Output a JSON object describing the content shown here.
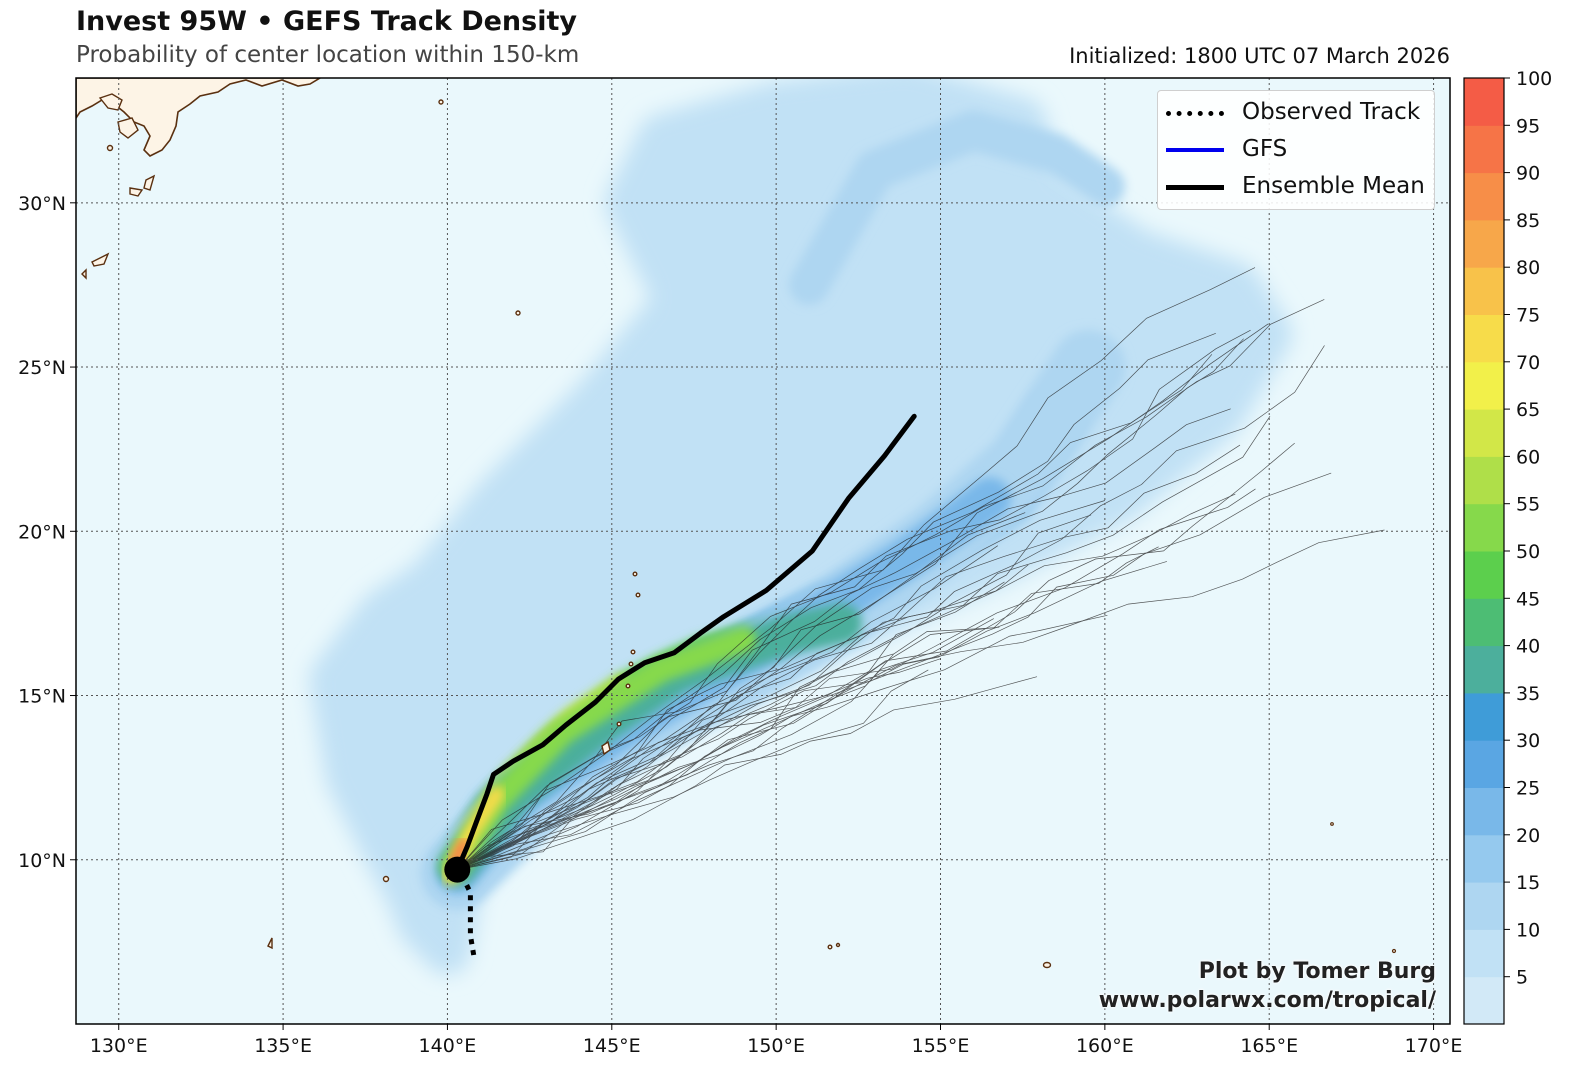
{
  "header": {
    "title": "Invest 95W • GEFS Track Density",
    "subtitle": "Probability of center location within 150-km",
    "initialized": "Initialized: 1800 UTC 07 March 2026"
  },
  "legend": {
    "items": [
      {
        "label": "Observed Track",
        "style": "dotted",
        "color": "#000000"
      },
      {
        "label": "GFS",
        "style": "solid",
        "color": "#0000ee"
      },
      {
        "label": "Ensemble Mean",
        "style": "solid",
        "color": "#000000"
      }
    ]
  },
  "credits": {
    "line1": "Plot by Tomer Burg",
    "line2": "www.polarwx.com/tropical/"
  },
  "colors": {
    "ocean": "#eaf8fc",
    "land": "#fdf4e6",
    "coast": "#5a3010",
    "grid": "#555555"
  },
  "chart_data": {
    "type": "heatmap",
    "title": "Invest 95W • GEFS Track Density",
    "xlim": [
      128.7,
      170.5
    ],
    "ylim": [
      5.0,
      33.8
    ],
    "lon_ticks": [
      130,
      135,
      140,
      145,
      150,
      155,
      160,
      165,
      170
    ],
    "lon_labels": [
      "130°E",
      "135°E",
      "140°E",
      "145°E",
      "150°E",
      "155°E",
      "160°E",
      "165°E",
      "170°E"
    ],
    "lat_ticks": [
      10,
      15,
      20,
      25,
      30
    ],
    "lat_labels": [
      "10°N",
      "15°N",
      "20°N",
      "25°N",
      "30°N"
    ],
    "colorbar": {
      "levels": [
        0,
        5,
        10,
        15,
        20,
        25,
        30,
        35,
        40,
        45,
        50,
        55,
        60,
        65,
        70,
        75,
        80,
        85,
        90,
        95,
        100
      ],
      "tick_labels": [
        "5",
        "10",
        "15",
        "20",
        "25",
        "30",
        "35",
        "40",
        "45",
        "50",
        "55",
        "60",
        "65",
        "70",
        "75",
        "80",
        "85",
        "90",
        "95",
        "100"
      ],
      "colors": [
        "#d2e9f7",
        "#c1e1f5",
        "#aed6f1",
        "#95c9ee",
        "#79b8e9",
        "#5aa6e3",
        "#3f9cd8",
        "#4caf9c",
        "#4dbd74",
        "#5ccf4d",
        "#86d94b",
        "#afdf49",
        "#d2e748",
        "#f2f04a",
        "#f7dc4a",
        "#f8c24a",
        "#f7a74a",
        "#f78e48",
        "#f67447",
        "#f45c46"
      ]
    },
    "observed_track": [
      [
        140.8,
        7.1
      ],
      [
        140.7,
        7.7
      ],
      [
        140.7,
        8.3
      ],
      [
        140.7,
        9.0
      ],
      [
        140.4,
        9.6
      ]
    ],
    "ensemble_mean": [
      [
        140.3,
        9.7
      ],
      [
        140.6,
        10.4
      ],
      [
        140.9,
        11.2
      ],
      [
        141.2,
        12.0
      ],
      [
        141.4,
        12.6
      ],
      [
        142.0,
        13.0
      ],
      [
        142.9,
        13.5
      ],
      [
        143.6,
        14.1
      ],
      [
        144.5,
        14.8
      ],
      [
        145.2,
        15.5
      ],
      [
        146.0,
        16.0
      ],
      [
        146.9,
        16.3
      ],
      [
        147.7,
        16.9
      ],
      [
        148.4,
        17.4
      ],
      [
        149.7,
        18.2
      ],
      [
        151.1,
        19.4
      ],
      [
        152.2,
        21.0
      ],
      [
        153.3,
        22.3
      ],
      [
        154.2,
        23.5
      ]
    ],
    "genesis_point": [
      140.3,
      9.7
    ],
    "density_bands": [
      {
        "min": 5,
        "path": [
          [
            140.4,
            9.4
          ],
          [
            142.0,
            11.2
          ],
          [
            144.5,
            13.0
          ],
          [
            147.5,
            14.8
          ],
          [
            150.5,
            16.2
          ],
          [
            153.5,
            17.6
          ],
          [
            157.0,
            19.2
          ],
          [
            160.5,
            21.0
          ],
          [
            163.5,
            23.5
          ],
          [
            165.0,
            26.0
          ],
          [
            164.0,
            27.5
          ],
          [
            161.0,
            28.5
          ],
          [
            158.0,
            30.5
          ],
          [
            157.5,
            32.5
          ],
          [
            154.0,
            33.5
          ],
          [
            150.0,
            33.0
          ],
          [
            146.5,
            32.0
          ],
          [
            145.5,
            30.0
          ],
          [
            147.0,
            27.0
          ],
          [
            144.5,
            24.0
          ],
          [
            141.5,
            21.0
          ],
          [
            139.5,
            18.5
          ],
          [
            138.0,
            17.5
          ],
          [
            136.5,
            15.5
          ],
          [
            137.0,
            12.5
          ],
          [
            138.0,
            10.5
          ],
          [
            138.8,
            9.0
          ],
          [
            139.2,
            8.0
          ],
          [
            140.0,
            7.2
          ]
        ],
        "width": 46
      },
      {
        "min": 15,
        "path": [
          [
            140.3,
            9.6
          ],
          [
            142.5,
            11.8
          ],
          [
            145.0,
            13.6
          ],
          [
            148.0,
            15.4
          ],
          [
            151.0,
            17.2
          ],
          [
            154.0,
            19.0
          ],
          [
            157.0,
            21.0
          ],
          [
            158.5,
            23.5
          ]
        ],
        "width": 58
      },
      {
        "min": 30,
        "path": [
          [
            140.3,
            9.7
          ],
          [
            141.5,
            11.5
          ],
          [
            143.5,
            13.3
          ],
          [
            146.0,
            14.9
          ],
          [
            149.0,
            16.4
          ],
          [
            151.5,
            17.6
          ]
        ],
        "width": 48
      },
      {
        "min": 45,
        "path": [
          [
            140.2,
            9.8
          ],
          [
            141.3,
            11.4
          ],
          [
            143.2,
            13.4
          ],
          [
            145.5,
            15.2
          ],
          [
            147.8,
            16.3
          ],
          [
            150.0,
            16.8
          ]
        ],
        "width": 34
      },
      {
        "min": 60,
        "path": [
          [
            140.1,
            9.5
          ],
          [
            140.9,
            11.0
          ],
          [
            142.0,
            12.6
          ],
          [
            143.8,
            14.3
          ],
          [
            145.3,
            15.3
          ]
        ],
        "width": 22
      },
      {
        "min": 80,
        "path": [
          [
            140.1,
            9.6
          ],
          [
            140.5,
            10.6
          ],
          [
            141.0,
            11.3
          ]
        ],
        "width": 14
      }
    ]
  }
}
